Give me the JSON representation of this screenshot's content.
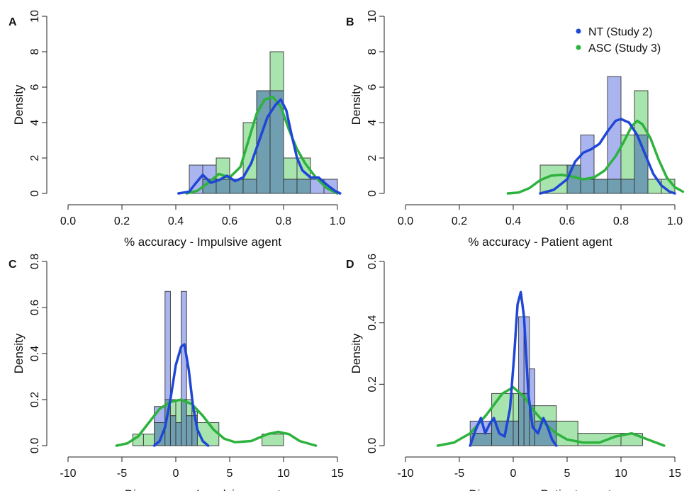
{
  "legend": {
    "placement": "top-right of panel B",
    "entries": [
      {
        "label": "NT (Study 2)",
        "color": "#1f46d6"
      },
      {
        "label": "ASC (Study 3)",
        "color": "#2db33d"
      }
    ]
  },
  "colors": {
    "nt_line": "#1f46d6",
    "asc_line": "#2db33d",
    "nt_fill": "#aab5f0",
    "asc_fill": "#a8e4ae",
    "overlap_fill": "#6f9fb1"
  },
  "chart_data": [
    {
      "panel": "A",
      "type": "histogram+density",
      "xlabel": "% accuracy - Impulsive agent",
      "ylabel": "Density",
      "xlim": [
        0.0,
        1.0
      ],
      "ylim": [
        0,
        10
      ],
      "xticks": [
        "0.0",
        "0.2",
        "0.4",
        "0.6",
        "0.8",
        "1.0"
      ],
      "yticks": [
        "0",
        "2",
        "4",
        "6",
        "8",
        "10"
      ],
      "bins": [
        0.45,
        0.5,
        0.55,
        0.6,
        0.65,
        0.7,
        0.75,
        0.8,
        0.85,
        0.9,
        0.95,
        1.0
      ],
      "series": [
        {
          "name": "NT (Study 2)",
          "hist": [
            1.6,
            1.6,
            0.8,
            0.8,
            0.8,
            5.8,
            5.8,
            0.8,
            0.8,
            0.8,
            0.8
          ],
          "density": [
            [
              0.41,
              0
            ],
            [
              0.45,
              0.1
            ],
            [
              0.47,
              0.5
            ],
            [
              0.5,
              1.05
            ],
            [
              0.53,
              0.6
            ],
            [
              0.56,
              0.75
            ],
            [
              0.59,
              1.0
            ],
            [
              0.62,
              0.7
            ],
            [
              0.65,
              0.9
            ],
            [
              0.68,
              1.7
            ],
            [
              0.71,
              3.0
            ],
            [
              0.74,
              4.3
            ],
            [
              0.77,
              5.0
            ],
            [
              0.79,
              5.3
            ],
            [
              0.81,
              4.7
            ],
            [
              0.83,
              3.3
            ],
            [
              0.85,
              2.0
            ],
            [
              0.87,
              1.3
            ],
            [
              0.9,
              0.9
            ],
            [
              0.93,
              0.9
            ],
            [
              0.96,
              0.5
            ],
            [
              0.99,
              0.15
            ],
            [
              1.01,
              0
            ]
          ]
        },
        {
          "name": "ASC (Study 3)",
          "hist": [
            0,
            0.8,
            2.0,
            0.8,
            4.0,
            5.8,
            8.0,
            2.0,
            2.0,
            0,
            0
          ],
          "density": [
            [
              0.44,
              0
            ],
            [
              0.48,
              0.15
            ],
            [
              0.52,
              0.6
            ],
            [
              0.56,
              1.1
            ],
            [
              0.6,
              0.9
            ],
            [
              0.64,
              1.5
            ],
            [
              0.67,
              3.0
            ],
            [
              0.7,
              4.5
            ],
            [
              0.73,
              5.3
            ],
            [
              0.76,
              5.45
            ],
            [
              0.79,
              4.9
            ],
            [
              0.82,
              3.6
            ],
            [
              0.85,
              2.5
            ],
            [
              0.88,
              1.7
            ],
            [
              0.92,
              0.9
            ],
            [
              0.96,
              0.3
            ],
            [
              1.0,
              0
            ]
          ]
        }
      ]
    },
    {
      "panel": "B",
      "type": "histogram+density",
      "xlabel": "% accuracy - Patient agent",
      "ylabel": "Density",
      "xlim": [
        0.0,
        1.0
      ],
      "ylim": [
        0,
        10
      ],
      "xticks": [
        "0.0",
        "0.2",
        "0.4",
        "0.6",
        "0.8",
        "1.0"
      ],
      "yticks": [
        "0",
        "2",
        "4",
        "6",
        "8",
        "10"
      ],
      "bins": [
        0.5,
        0.6,
        0.65,
        0.7,
        0.75,
        0.8,
        0.85,
        0.9,
        0.95,
        1.0
      ],
      "series": [
        {
          "name": "NT (Study 2)",
          "hist": [
            0,
            1.6,
            3.3,
            0.8,
            6.6,
            0.8,
            3.3,
            0,
            0
          ],
          "density": [
            [
              0.5,
              0
            ],
            [
              0.55,
              0.2
            ],
            [
              0.6,
              0.8
            ],
            [
              0.63,
              1.8
            ],
            [
              0.66,
              2.3
            ],
            [
              0.69,
              2.5
            ],
            [
              0.72,
              2.8
            ],
            [
              0.75,
              3.5
            ],
            [
              0.78,
              4.1
            ],
            [
              0.8,
              4.2
            ],
            [
              0.83,
              4.0
            ],
            [
              0.86,
              3.3
            ],
            [
              0.89,
              2.2
            ],
            [
              0.92,
              1.1
            ],
            [
              0.95,
              0.45
            ],
            [
              0.98,
              0.1
            ],
            [
              1.0,
              0
            ]
          ]
        },
        {
          "name": "ASC (Study 3)",
          "hist": [
            1.6,
            1.6,
            0.8,
            0.8,
            0.8,
            3.3,
            5.8,
            0.8,
            0.8
          ],
          "density": [
            [
              0.38,
              0
            ],
            [
              0.42,
              0.05
            ],
            [
              0.46,
              0.3
            ],
            [
              0.5,
              0.75
            ],
            [
              0.54,
              1.0
            ],
            [
              0.58,
              1.05
            ],
            [
              0.62,
              0.95
            ],
            [
              0.66,
              0.8
            ],
            [
              0.7,
              0.9
            ],
            [
              0.74,
              1.3
            ],
            [
              0.78,
              2.1
            ],
            [
              0.81,
              2.9
            ],
            [
              0.84,
              3.8
            ],
            [
              0.86,
              4.1
            ],
            [
              0.88,
              3.9
            ],
            [
              0.91,
              3.1
            ],
            [
              0.94,
              1.9
            ],
            [
              0.97,
              0.9
            ],
            [
              1.0,
              0.35
            ],
            [
              1.03,
              0.1
            ]
          ]
        }
      ]
    },
    {
      "panel": "C",
      "type": "histogram+density",
      "xlabel": "Divergence - Impulsive agent",
      "ylabel": "Density",
      "xlim": [
        -10,
        15
      ],
      "ylim": [
        0,
        0.8
      ],
      "xticks": [
        "-10",
        "-5",
        "0",
        "5",
        "10",
        "15"
      ],
      "yticks": [
        "0.0",
        "0.2",
        "0.4",
        "0.6",
        "0.8"
      ],
      "bins": [
        -4,
        -3,
        -2,
        -1,
        -0.5,
        0,
        0.5,
        1,
        1.5,
        2,
        4,
        8,
        10
      ],
      "series": [
        {
          "name": "NT (Study 2)",
          "hist": [
            0,
            0,
            0.17,
            0.67,
            0.13,
            0.1,
            0.67,
            0.13,
            0.13,
            0,
            0,
            0
          ],
          "density": [
            [
              -2.0,
              0
            ],
            [
              -1.5,
              0.02
            ],
            [
              -1.0,
              0.08
            ],
            [
              -0.5,
              0.2
            ],
            [
              0,
              0.35
            ],
            [
              0.5,
              0.43
            ],
            [
              0.8,
              0.44
            ],
            [
              1.2,
              0.33
            ],
            [
              1.6,
              0.17
            ],
            [
              2.0,
              0.07
            ],
            [
              2.5,
              0.02
            ],
            [
              3.0,
              0
            ]
          ]
        },
        {
          "name": "ASC (Study 3)",
          "hist": [
            0.05,
            0.05,
            0.1,
            0.2,
            0.2,
            0.2,
            0.2,
            0.2,
            0.15,
            0.1,
            0,
            0.05
          ],
          "density": [
            [
              -5.5,
              0
            ],
            [
              -4.5,
              0.01
            ],
            [
              -3.5,
              0.04
            ],
            [
              -2.5,
              0.1
            ],
            [
              -1.5,
              0.16
            ],
            [
              -0.5,
              0.19
            ],
            [
              0.5,
              0.2
            ],
            [
              1.5,
              0.18
            ],
            [
              2.5,
              0.13
            ],
            [
              3.5,
              0.07
            ],
            [
              4.5,
              0.03
            ],
            [
              5.5,
              0.015
            ],
            [
              7,
              0.02
            ],
            [
              8.5,
              0.05
            ],
            [
              9.5,
              0.06
            ],
            [
              10.5,
              0.05
            ],
            [
              11.5,
              0.02
            ],
            [
              13,
              0
            ]
          ]
        }
      ]
    },
    {
      "panel": "D",
      "type": "histogram+density",
      "xlabel": "Divergence - Patient agent",
      "ylabel": "Density",
      "xlim": [
        -10,
        15
      ],
      "ylim": [
        0,
        0.6
      ],
      "xticks": [
        "-10",
        "-5",
        "0",
        "5",
        "10",
        "15"
      ],
      "yticks": [
        "0.0",
        "0.2",
        "0.4",
        "0.6"
      ],
      "bins": [
        -4,
        -2,
        0,
        0.5,
        1,
        1.5,
        2,
        4,
        6,
        10,
        12
      ],
      "series": [
        {
          "name": "NT (Study 2)",
          "hist": [
            0.08,
            0.08,
            0.08,
            0.42,
            0.42,
            0.25,
            0.08,
            0,
            0,
            0
          ],
          "density": [
            [
              -4,
              0
            ],
            [
              -3.5,
              0.05
            ],
            [
              -3,
              0.09
            ],
            [
              -2.6,
              0.04
            ],
            [
              -2.2,
              0.07
            ],
            [
              -1.8,
              0.09
            ],
            [
              -1.3,
              0.04
            ],
            [
              -0.8,
              0.03
            ],
            [
              -0.3,
              0.12
            ],
            [
              0.1,
              0.3
            ],
            [
              0.4,
              0.46
            ],
            [
              0.7,
              0.5
            ],
            [
              1.0,
              0.42
            ],
            [
              1.4,
              0.17
            ],
            [
              1.8,
              0.06
            ],
            [
              2.3,
              0.04
            ],
            [
              2.8,
              0.09
            ],
            [
              3.2,
              0.06
            ],
            [
              3.6,
              0.02
            ],
            [
              4,
              0
            ]
          ]
        },
        {
          "name": "ASC (Study 3)",
          "hist": [
            0.04,
            0.17,
            0.17,
            0.17,
            0.17,
            0.13,
            0.13,
            0.08,
            0.04,
            0.04
          ],
          "density": [
            [
              -7,
              0
            ],
            [
              -5.5,
              0.01
            ],
            [
              -4,
              0.04
            ],
            [
              -2.5,
              0.1
            ],
            [
              -1,
              0.17
            ],
            [
              0,
              0.19
            ],
            [
              1,
              0.16
            ],
            [
              2,
              0.11
            ],
            [
              3,
              0.07
            ],
            [
              4,
              0.04
            ],
            [
              5,
              0.02
            ],
            [
              6.5,
              0.01
            ],
            [
              8,
              0.01
            ],
            [
              9.5,
              0.03
            ],
            [
              11,
              0.04
            ],
            [
              12.5,
              0.02
            ],
            [
              14,
              0.0
            ]
          ]
        }
      ]
    }
  ]
}
